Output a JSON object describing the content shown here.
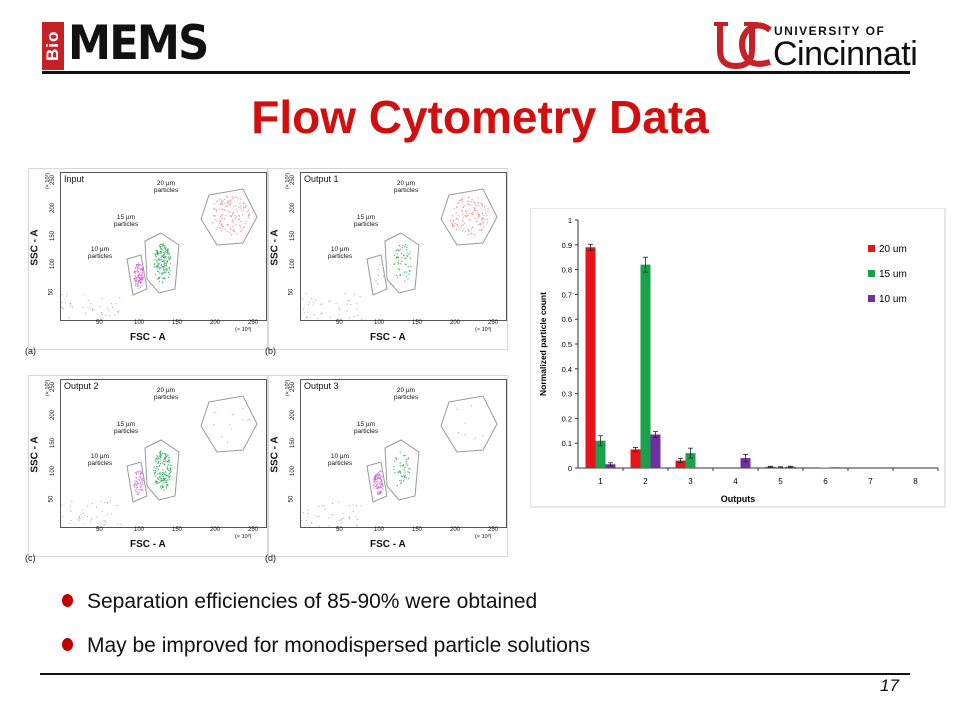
{
  "header": {
    "logo_left_small": "Bio",
    "logo_left_big": "MEMS",
    "logo_right_top": "UNIVERSITY OF",
    "logo_right_main": "Cincinnati"
  },
  "title": "Flow Cytometry Data",
  "colors": {
    "title": "#d20f0f",
    "bullet": "#c00000",
    "red": "#e8141b",
    "green": "#1aa14b",
    "purple": "#7030a0"
  },
  "panels": [
    {
      "label": "Input",
      "corner": "(a)"
    },
    {
      "label": "Output 1",
      "corner": "(b)"
    },
    {
      "label": "Output 2",
      "corner": "(c)"
    },
    {
      "label": "Output 3",
      "corner": "(d)"
    }
  ],
  "panel_axes": {
    "x_label": "FSC - A",
    "y_label": "SSC - A",
    "x_ticks": [
      "50",
      "100",
      "150",
      "200",
      "250"
    ],
    "y_ticks": [
      "50",
      "100",
      "150",
      "200",
      "250"
    ],
    "multiplier": "(× 10³)"
  },
  "panel_annotations": {
    "p20": [
      "20 µm",
      "particles"
    ],
    "p15": [
      "15 µm",
      "particles"
    ],
    "p10": [
      "10 µm",
      "particles"
    ]
  },
  "chart_data": {
    "type": "bar",
    "categories": [
      "1",
      "2",
      "3",
      "4",
      "5",
      "6",
      "7",
      "8"
    ],
    "series": [
      {
        "name": "20 um",
        "values": [
          0.89,
          0.075,
          0.03,
          0.0,
          0.005,
          0.0,
          0.0,
          0.0
        ],
        "errors": [
          0.012,
          0.008,
          0.008,
          0.0,
          0.002,
          0.0,
          0.0,
          0.0
        ]
      },
      {
        "name": "15 um",
        "values": [
          0.11,
          0.82,
          0.06,
          0.0,
          0.003,
          0.002,
          0.0,
          0.0
        ],
        "errors": [
          0.02,
          0.03,
          0.02,
          0.0,
          0.002,
          0.0,
          0.0,
          0.0
        ]
      },
      {
        "name": "10 um",
        "values": [
          0.015,
          0.135,
          0.0,
          0.04,
          0.005,
          0.003,
          0.0,
          0.0
        ],
        "errors": [
          0.006,
          0.012,
          0.0,
          0.015,
          0.002,
          0.0,
          0.0,
          0.0
        ]
      }
    ],
    "y_ticks": [
      "0",
      "0.1",
      "0.2",
      "0.3",
      "0.4",
      "0.5",
      "0.6",
      "0.7",
      "0.8",
      "0.9",
      "1"
    ],
    "xlabel": "Outputs",
    "ylabel": "Normalized particle count",
    "ylim": [
      0,
      1
    ],
    "legend_position": "top-right",
    "grid": false
  },
  "bullets": [
    "Separation efficiencies of 85-90% were obtained",
    "May be improved for monodispersed particle solutions"
  ],
  "page_number": "17"
}
